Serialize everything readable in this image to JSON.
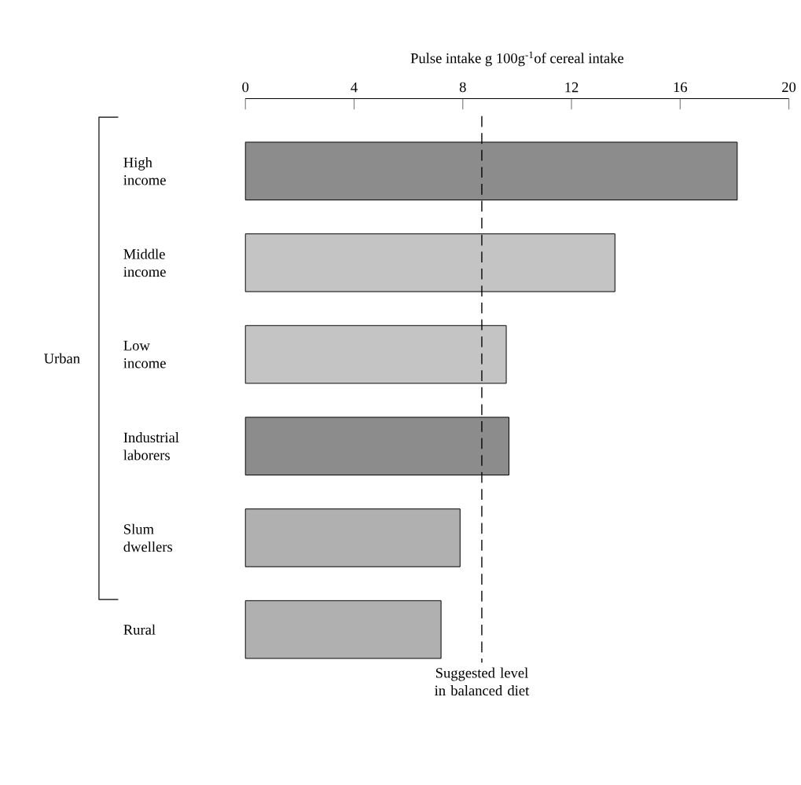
{
  "chart_data": {
    "type": "bar",
    "orientation": "horizontal",
    "xlabel": "Pulse intake g 100g$^{-1}$of cereal intake",
    "categories": [
      "High income",
      "Middle income",
      "Low income",
      "Industrial laborers",
      "Slum dwellers",
      "Rural"
    ],
    "values": [
      18.1,
      13.6,
      9.6,
      9.7,
      7.9,
      7.2
    ],
    "colors": [
      "#8c8c8c",
      "#c4c4c4",
      "#c4c4c4",
      "#8c8c8c",
      "#b0b0b0",
      "#b0b0b0"
    ],
    "xlim": [
      0,
      20
    ],
    "xticks": [
      0,
      4,
      8,
      12,
      16,
      20
    ],
    "ref_lines": [
      {
        "axis": "x",
        "value": 8.7,
        "label": "Suggested level in balanced diet",
        "line_style": "dashed"
      }
    ],
    "annotations": [
      "Urban"
    ],
    "grid": false
  }
}
